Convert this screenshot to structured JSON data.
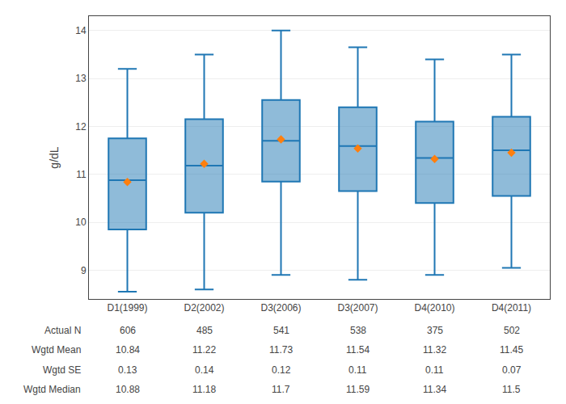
{
  "chart_data": {
    "type": "box",
    "categories": [
      "D1(1999)",
      "D2(2002)",
      "D3(2006)",
      "D3(2007)",
      "D4(2010)",
      "D4(2011)"
    ],
    "boxes": [
      {
        "whisker_low": 8.55,
        "q1": 9.85,
        "median": 10.88,
        "q3": 11.75,
        "whisker_high": 13.2,
        "mean": 10.84
      },
      {
        "whisker_low": 8.6,
        "q1": 10.2,
        "median": 11.18,
        "q3": 12.15,
        "whisker_high": 13.5,
        "mean": 11.22
      },
      {
        "whisker_low": 8.9,
        "q1": 10.85,
        "median": 11.7,
        "q3": 12.55,
        "whisker_high": 14.0,
        "mean": 11.73
      },
      {
        "whisker_low": 8.8,
        "q1": 10.65,
        "median": 11.59,
        "q3": 12.4,
        "whisker_high": 13.65,
        "mean": 11.54
      },
      {
        "whisker_low": 8.9,
        "q1": 10.4,
        "median": 11.34,
        "q3": 12.1,
        "whisker_high": 13.4,
        "mean": 11.32
      },
      {
        "whisker_low": 9.05,
        "q1": 10.55,
        "median": 11.5,
        "q3": 12.2,
        "whisker_high": 13.5,
        "mean": 11.45
      }
    ],
    "marker": "diamond",
    "table": [
      {
        "label": "Actual N",
        "values": [
          606,
          485,
          541,
          538,
          375,
          502
        ]
      },
      {
        "label": "Wgtd Mean",
        "values": [
          10.84,
          11.22,
          11.73,
          11.54,
          11.32,
          11.45
        ]
      },
      {
        "label": "Wgtd SE",
        "values": [
          0.13,
          0.14,
          0.12,
          0.11,
          0.11,
          0.07
        ]
      },
      {
        "label": "Wgtd Median",
        "values": [
          10.88,
          11.18,
          11.7,
          11.59,
          11.34,
          11.5
        ]
      }
    ],
    "ylabel": "g/dL",
    "ylim": [
      8.4,
      14.3
    ],
    "yticks": [
      9,
      10,
      11,
      12,
      13,
      14
    ],
    "grid": true
  }
}
